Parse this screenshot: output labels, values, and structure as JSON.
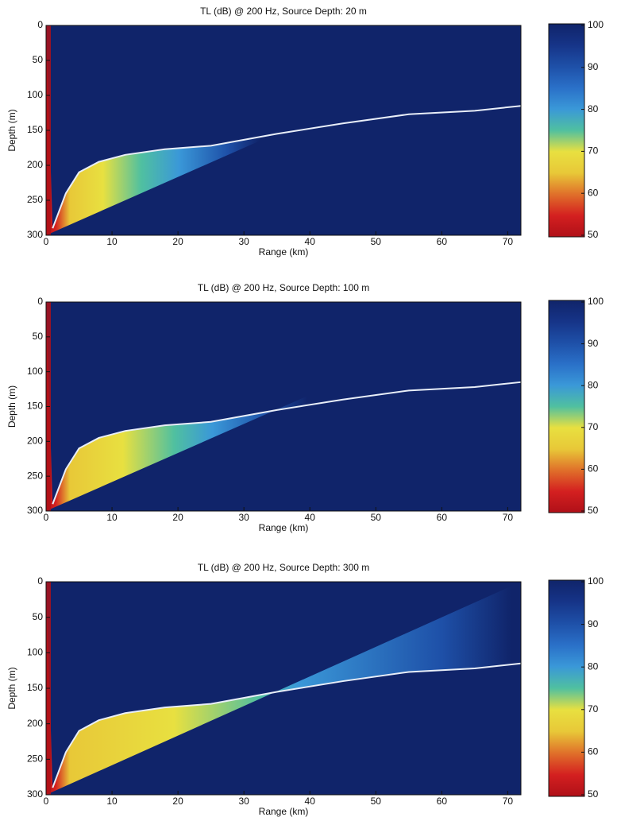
{
  "chart_data": [
    {
      "type": "heatmap",
      "title": "TL (dB) @ 200 Hz, Source Depth: 20 m",
      "xlabel": "Range (km)",
      "ylabel": "Depth (m)",
      "xlim": [
        0,
        72
      ],
      "xticks": [
        0,
        10,
        20,
        30,
        40,
        50,
        60,
        70
      ],
      "ylim": [
        0,
        300
      ],
      "yticks": [
        0,
        50,
        100,
        150,
        200,
        250,
        300
      ],
      "colorbar": {
        "clim": [
          50,
          100
        ],
        "ticks": [
          50,
          60,
          70,
          80,
          90,
          100
        ],
        "colors": [
          "#b01018",
          "#d42020",
          "#e0702a",
          "#e8c838",
          "#e8e040",
          "#50c0a0",
          "#3a98d8",
          "#2a70c8",
          "#1e50a8",
          "#163488",
          "#10246a"
        ]
      },
      "bottom": {
        "color": "#e8eef8",
        "x": [
          1,
          3,
          5,
          8,
          12,
          18,
          25,
          35,
          45,
          55,
          65,
          72
        ],
        "values": [
          290,
          240,
          210,
          195,
          185,
          177,
          172,
          155,
          140,
          127,
          122,
          115
        ]
      }
    },
    {
      "type": "heatmap",
      "title": "TL (dB) @ 200 Hz, Source Depth: 100 m",
      "xlabel": "Range (km)",
      "ylabel": "Depth (m)",
      "xlim": [
        0,
        72
      ],
      "xticks": [
        0,
        10,
        20,
        30,
        40,
        50,
        60,
        70
      ],
      "ylim": [
        0,
        300
      ],
      "yticks": [
        0,
        50,
        100,
        150,
        200,
        250,
        300
      ],
      "colorbar": {
        "clim": [
          50,
          100
        ],
        "ticks": [
          50,
          60,
          70,
          80,
          90,
          100
        ],
        "colors": [
          "#b01018",
          "#d42020",
          "#e0702a",
          "#e8c838",
          "#e8e040",
          "#50c0a0",
          "#3a98d8",
          "#2a70c8",
          "#1e50a8",
          "#163488",
          "#10246a"
        ]
      },
      "bottom": {
        "color": "#e8eef8",
        "x": [
          1,
          3,
          5,
          8,
          12,
          18,
          25,
          35,
          45,
          55,
          65,
          72
        ],
        "values": [
          290,
          240,
          210,
          195,
          185,
          177,
          172,
          155,
          140,
          127,
          122,
          115
        ]
      }
    },
    {
      "type": "heatmap",
      "title": "TL (dB) @ 200 Hz, Source Depth: 300 m",
      "xlabel": "Range (km)",
      "ylabel": "Depth (m)",
      "xlim": [
        0,
        72
      ],
      "xticks": [
        0,
        10,
        20,
        30,
        40,
        50,
        60,
        70
      ],
      "ylim": [
        0,
        300
      ],
      "yticks": [
        0,
        50,
        100,
        150,
        200,
        250,
        300
      ],
      "colorbar": {
        "clim": [
          50,
          100
        ],
        "ticks": [
          50,
          60,
          70,
          80,
          90,
          100
        ],
        "colors": [
          "#b01018",
          "#d42020",
          "#e0702a",
          "#e8c838",
          "#e8e040",
          "#50c0a0",
          "#3a98d8",
          "#2a70c8",
          "#1e50a8",
          "#163488",
          "#10246a"
        ]
      },
      "bottom": {
        "color": "#e8eef8",
        "x": [
          1,
          3,
          5,
          8,
          12,
          18,
          25,
          35,
          45,
          55,
          65,
          72
        ],
        "values": [
          290,
          240,
          210,
          195,
          185,
          177,
          172,
          155,
          140,
          127,
          122,
          115
        ]
      }
    }
  ]
}
